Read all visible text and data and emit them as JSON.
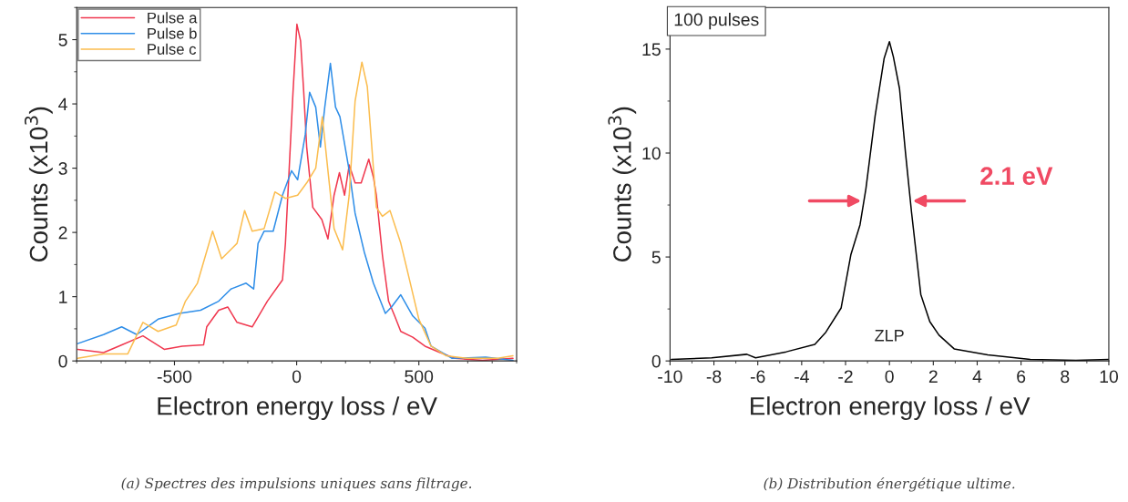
{
  "chart_data": [
    {
      "type": "line",
      "xlabel": "Electron energy loss / eV",
      "ylabel": "Counts (x10$^{3}$)",
      "xlim": [
        -900,
        900
      ],
      "ylim": [
        0,
        5.5
      ],
      "xticks": [
        -500,
        0,
        500
      ],
      "yticks": [
        0,
        1,
        2,
        3,
        4,
        5
      ],
      "grid": false,
      "legend": "top left",
      "series": [
        {
          "name": "Pulse a",
          "color": "#f0384f",
          "x": [
            -896,
            -790,
            -728,
            -629,
            -542,
            -468,
            -381,
            -368,
            -319,
            -282,
            -244,
            -182,
            -120,
            -58,
            -46,
            -31,
            -15,
            1,
            16,
            29,
            41,
            66,
            103,
            128,
            153,
            175,
            196,
            215,
            239,
            264,
            295,
            314,
            326,
            351,
            376,
            401,
            426,
            475,
            525,
            587,
            649,
            761,
            885
          ],
          "values": [
            0.18,
            0.13,
            0.23,
            0.39,
            0.18,
            0.23,
            0.25,
            0.53,
            0.79,
            0.84,
            0.6,
            0.53,
            0.93,
            1.26,
            1.83,
            2.96,
            4.18,
            5.24,
            4.98,
            4.18,
            3.33,
            2.39,
            2.2,
            1.9,
            2.58,
            2.93,
            2.58,
            3.05,
            2.77,
            2.77,
            3.14,
            2.86,
            2.58,
            1.64,
            0.93,
            0.7,
            0.46,
            0.37,
            0.23,
            0.13,
            0.04,
            0.01,
            0.04
          ]
        },
        {
          "name": "Pulse b",
          "color": "#2f8ee8",
          "x": [
            -896,
            -790,
            -716,
            -654,
            -567,
            -480,
            -393,
            -319,
            -269,
            -207,
            -176,
            -158,
            -133,
            -96,
            -58,
            -21,
            4,
            35,
            53,
            78,
            97,
            115,
            138,
            159,
            177,
            215,
            239,
            277,
            314,
            363,
            388,
            426,
            475,
            525,
            550,
            636,
            773,
            885
          ],
          "values": [
            0.27,
            0.41,
            0.53,
            0.41,
            0.65,
            0.74,
            0.79,
            0.93,
            1.12,
            1.21,
            1.12,
            1.83,
            2.02,
            2.02,
            2.58,
            2.96,
            2.82,
            3.52,
            4.18,
            3.95,
            3.33,
            3.95,
            4.63,
            3.95,
            3.8,
            2.96,
            2.3,
            1.69,
            1.21,
            0.74,
            0.84,
            1.03,
            0.7,
            0.51,
            0.23,
            0.04,
            0.06,
            0.01
          ]
        },
        {
          "name": "Pulse c",
          "color": "#fbbd4f",
          "x": [
            -896,
            -790,
            -691,
            -629,
            -567,
            -493,
            -455,
            -406,
            -344,
            -307,
            -244,
            -213,
            -182,
            -133,
            -89,
            -46,
            4,
            41,
            78,
            105,
            128,
            153,
            188,
            215,
            239,
            267,
            289,
            326,
            351,
            382,
            426,
            450,
            500,
            550,
            612,
            699,
            823,
            885
          ],
          "values": [
            0.04,
            0.11,
            0.11,
            0.6,
            0.46,
            0.56,
            0.93,
            1.21,
            2.02,
            1.59,
            1.83,
            2.34,
            2.02,
            2.06,
            2.63,
            2.53,
            2.58,
            2.77,
            3.0,
            3.8,
            2.96,
            2.06,
            1.73,
            2.58,
            4.04,
            4.65,
            4.27,
            2.39,
            2.25,
            2.34,
            1.83,
            1.45,
            0.65,
            0.23,
            0.08,
            0.04,
            0.04,
            0.08
          ]
        }
      ],
      "annotations": [
        "(a) Spectres des impulsions uniques sans filtrage."
      ]
    },
    {
      "type": "line",
      "xlabel": "Electron energy loss / eV",
      "ylabel": "Counts (x10$^{3}$)",
      "xlim": [
        -10,
        10
      ],
      "ylim": [
        0,
        17
      ],
      "xticks": [
        -10,
        -8,
        -6,
        -4,
        -2,
        0,
        2,
        4,
        6,
        8,
        10
      ],
      "yticks": [
        0,
        5,
        10,
        15
      ],
      "grid": false,
      "series": [
        {
          "color": "#000000",
          "x": [
            -9.94,
            -8.1,
            -6.5,
            -6.1,
            -4.7,
            -3.4,
            -2.9,
            -2.2,
            -1.76,
            -1.34,
            -1.07,
            -0.65,
            -0.24,
            0,
            0.18,
            0.46,
            0.73,
            1.01,
            1.43,
            1.84,
            2.26,
            2.95,
            4.48,
            6.42,
            8.5,
            10
          ],
          "values": [
            0.07,
            0.15,
            0.32,
            0.15,
            0.44,
            0.8,
            1.38,
            2.55,
            5.1,
            6.55,
            8.3,
            11.8,
            14.56,
            15.36,
            14.63,
            13.1,
            10.04,
            7.13,
            3.2,
            1.89,
            1.24,
            0.58,
            0.29,
            0.07,
            0.03,
            0.07
          ]
        }
      ],
      "annotations": [
        "100 pulses",
        "ZLP",
        {
          "text": "2.1 eV",
          "x": 0.94,
          "y": 7.7
        },
        "(b) Distribution énergétique ultime."
      ]
    }
  ]
}
